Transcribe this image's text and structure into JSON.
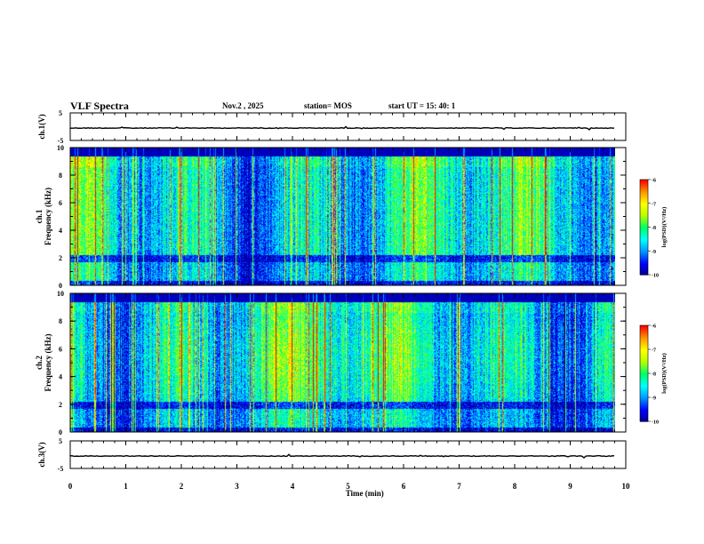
{
  "header": {
    "title": "VLF Spectra",
    "date": "Nov.2 , 2025",
    "station": "station= MOS",
    "start": "start UT = 15: 40: 1"
  },
  "colors": {
    "colormap": [
      "#00008c",
      "#0000ff",
      "#0096ff",
      "#00ffff",
      "#00ff64",
      "#b4ff00",
      "#ffff00",
      "#ff9600",
      "#ff0000",
      "#ffffff"
    ]
  },
  "chart_data": [
    {
      "type": "line",
      "name": "ch1-waveform",
      "ylabel": "ch.1(V)",
      "ylim": [
        -5,
        5
      ],
      "yticks": [
        "5",
        "-5"
      ],
      "baseline": -0.5
    },
    {
      "type": "heatmap",
      "name": "ch1-spectrogram",
      "ylabel": "ch.1\nFrequency (kHz)",
      "ylim": [
        0,
        10
      ],
      "yticks": [
        "0",
        "2",
        "4",
        "6",
        "8",
        "10"
      ],
      "colorbar": {
        "label": "log(PSD)(V²/Hz)",
        "range": [
          -10,
          -6
        ],
        "ticks": [
          "-6",
          "-7",
          "-8",
          "-9",
          "-10"
        ]
      }
    },
    {
      "type": "heatmap",
      "name": "ch2-spectrogram",
      "ylabel": "ch.2\nFrequency (kHz)",
      "ylim": [
        0,
        10
      ],
      "yticks": [
        "0",
        "2",
        "4",
        "6",
        "8",
        "10"
      ],
      "colorbar": {
        "label": "log(PSD)(V²/Hz)",
        "range": [
          -10,
          -6
        ],
        "ticks": [
          "-6",
          "-7",
          "-8",
          "-9",
          "-10"
        ]
      }
    },
    {
      "type": "line",
      "name": "ch3-waveform",
      "ylabel": "ch.3(V)",
      "ylim": [
        -5,
        5
      ],
      "yticks": [
        "5",
        "-5"
      ],
      "baseline": -0.5
    }
  ],
  "x_axis": {
    "label": "Time (min)",
    "range": [
      0,
      10
    ],
    "ticks": [
      "0",
      "1",
      "2",
      "3",
      "4",
      "5",
      "6",
      "7",
      "8",
      "9",
      "10"
    ],
    "data_end": 9.8
  }
}
